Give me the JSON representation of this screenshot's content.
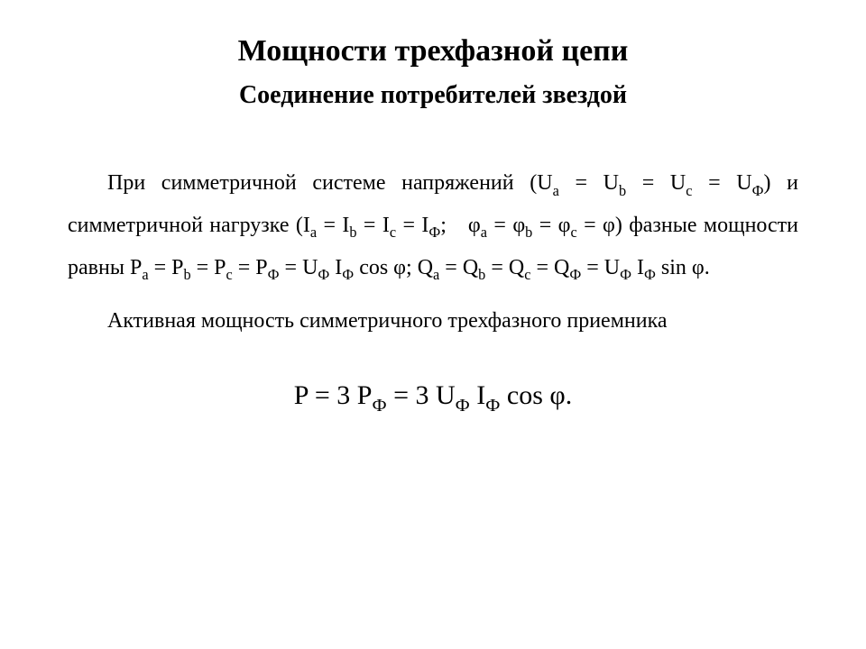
{
  "title": "Мощности трехфазной цепи",
  "subtitle": "Соединение потребителей звездой",
  "p1_a": "При симметричной системе напряжений ",
  "p1_b": " и симметричной нагрузке ",
  "p1_c": " фазные мощности равны ",
  "eq_u_open": "(U",
  "eq_u_mid": " = U",
  "eq_u_close": ")",
  "eq_i_open": "(I",
  "eq_i_mid": " = I",
  "eq_i_semi": "; ",
  "eq_phi_sym": "φ",
  "eq_phi_mid": " = φ",
  "eq_phi_close": ")",
  "eq_p_open": "P",
  "eq_p_mid": " = P",
  "eq_p_uf": " = U",
  "eq_p_if": " I",
  "eq_p_cos": " cos φ;",
  "eq_q_open": "Q",
  "eq_q_mid": " = Q",
  "eq_q_uf": " = U",
  "eq_q_if": " I",
  "eq_q_sin": " sin φ.",
  "sub_a": "a",
  "sub_b": "b",
  "sub_c": "c",
  "sub_F": "Ф",
  "p2": "Активная мощность симметричного трехфазного приемника",
  "formula_1": "P = 3 P",
  "formula_2": " = 3 U",
  "formula_3": " I",
  "formula_4": " cos φ."
}
